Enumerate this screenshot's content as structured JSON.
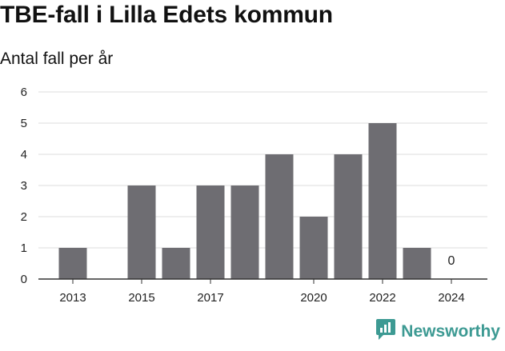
{
  "chart_data": {
    "type": "bar",
    "title": "TBE-fall i Lilla Edets kommun",
    "subtitle": "Antal fall per år",
    "categories": [
      2013,
      2014,
      2015,
      2016,
      2017,
      2018,
      2019,
      2020,
      2021,
      2022,
      2023,
      2024
    ],
    "values": [
      1,
      0,
      3,
      1,
      3,
      3,
      4,
      2,
      4,
      5,
      1,
      0
    ],
    "x_tick_labels": [
      "2013",
      "2015",
      "2017",
      "2020",
      "2022",
      "2024"
    ],
    "y_ticks": [
      0,
      1,
      2,
      3,
      4,
      5,
      6
    ],
    "ylim": [
      0,
      6
    ],
    "grid": true,
    "bar_color": "#6e6d72",
    "annotations": [
      {
        "category": 2024,
        "text": "0"
      }
    ]
  },
  "brand": {
    "name": "Newsworthy",
    "color": "#3d9a93"
  }
}
